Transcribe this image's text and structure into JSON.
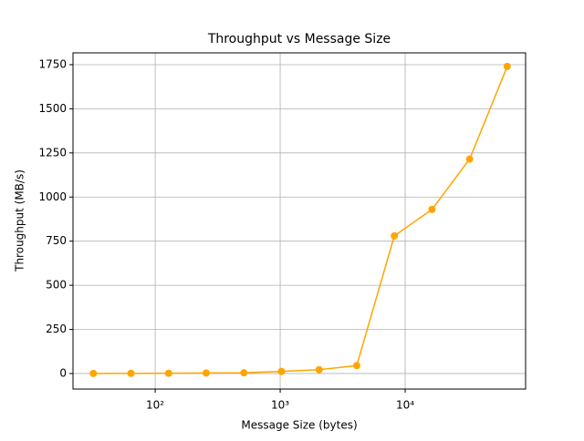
{
  "chart_data": {
    "type": "line",
    "title": "Throughput vs Message Size",
    "xlabel": "Message Size (bytes)",
    "ylabel": "Throughput (MB/s)",
    "xscale": "log",
    "x": [
      32,
      64,
      128,
      256,
      512,
      1024,
      2048,
      4096,
      8192,
      16384,
      32768,
      65536
    ],
    "series": [
      {
        "name": "Throughput",
        "color": "#ffa500",
        "values": [
          0.5,
          1,
          1.5,
          3,
          4,
          12,
          22,
          45,
          780,
          930,
          1215,
          1740
        ]
      }
    ],
    "xlim": [
      22,
      91900
    ],
    "ylim": [
      -88,
      1817
    ],
    "xticks": [
      {
        "value": 100,
        "label": "10²"
      },
      {
        "value": 1000,
        "label": "10³"
      },
      {
        "value": 10000,
        "label": "10⁴"
      }
    ],
    "yticks": [
      0,
      250,
      500,
      750,
      1000,
      1250,
      1500,
      1750
    ],
    "grid": true
  }
}
